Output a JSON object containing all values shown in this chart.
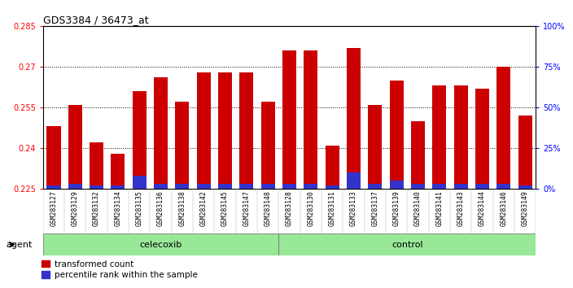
{
  "title": "GDS3384 / 36473_at",
  "samples": [
    "GSM283127",
    "GSM283129",
    "GSM283132",
    "GSM283134",
    "GSM283135",
    "GSM283136",
    "GSM283138",
    "GSM283142",
    "GSM283145",
    "GSM283147",
    "GSM283148",
    "GSM283128",
    "GSM283130",
    "GSM283131",
    "GSM283133",
    "GSM283137",
    "GSM283139",
    "GSM283140",
    "GSM283141",
    "GSM283143",
    "GSM283144",
    "GSM283146",
    "GSM283149"
  ],
  "transformed_count": [
    0.248,
    0.256,
    0.242,
    0.238,
    0.261,
    0.266,
    0.257,
    0.268,
    0.268,
    0.268,
    0.257,
    0.276,
    0.276,
    0.241,
    0.277,
    0.256,
    0.265,
    0.25,
    0.263,
    0.263,
    0.262,
    0.27,
    0.252
  ],
  "percentile_rank": [
    2,
    3,
    2,
    2,
    8,
    3,
    3,
    3,
    3,
    3,
    3,
    3,
    3,
    2,
    10,
    3,
    5,
    3,
    3,
    3,
    3,
    3,
    2
  ],
  "celecoxib_count": 11,
  "control_count": 12,
  "ylim_left": [
    0.225,
    0.285
  ],
  "ylim_right": [
    0,
    100
  ],
  "yticks_left": [
    0.225,
    0.24,
    0.255,
    0.27,
    0.285
  ],
  "yticks_right": [
    0,
    25,
    50,
    75,
    100
  ],
  "ytick_labels_right": [
    "0%",
    "25%",
    "50%",
    "75%",
    "100%"
  ],
  "bar_color_red": "#cc0000",
  "bar_color_blue": "#3333cc",
  "bar_width": 0.65,
  "celecoxib_color": "#98e898",
  "control_color": "#98e898",
  "agent_label": "agent",
  "celecoxib_label": "celecoxib",
  "control_label": "control",
  "legend_red": "transformed count",
  "legend_blue": "percentile rank within the sample",
  "grid_color": "#000000",
  "xtick_bg": "#c8c8c8"
}
